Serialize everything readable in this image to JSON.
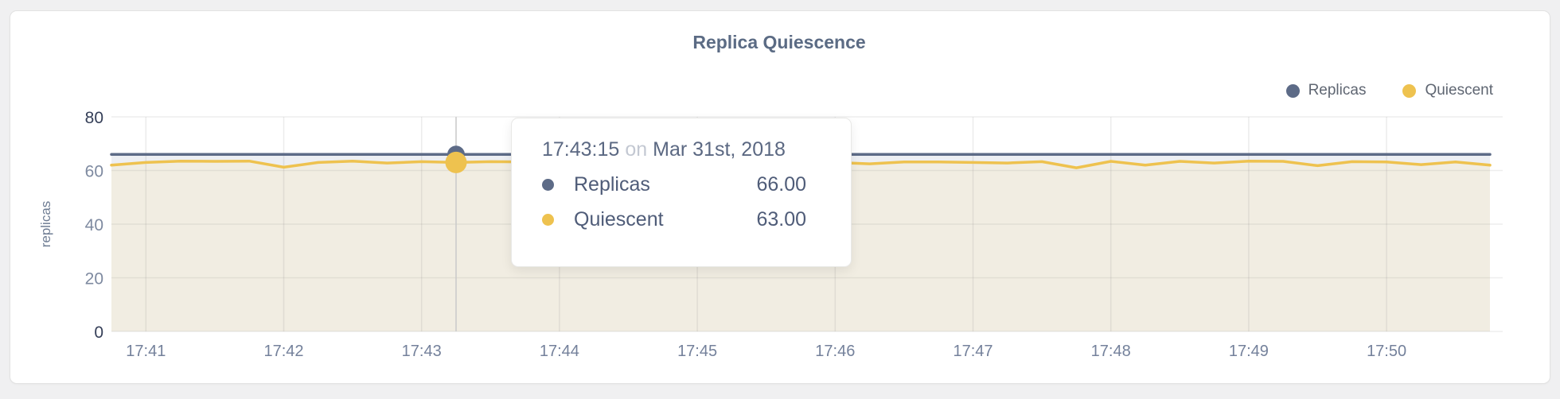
{
  "page": {
    "title": "Replica Quiescence"
  },
  "legend": {
    "items": [
      {
        "label": "Replicas",
        "color": "#5d6b87"
      },
      {
        "label": "Quiescent",
        "color": "#eec24f"
      }
    ]
  },
  "tooltip": {
    "time": "17:43:15",
    "connector": "on",
    "date": "Mar 31st, 2018",
    "rows": [
      {
        "name": "Replicas",
        "value": "66.00",
        "color": "#5d6b87"
      },
      {
        "name": "Quiescent",
        "value": "63.00",
        "color": "#eec24f"
      }
    ]
  },
  "chart_data": {
    "type": "area",
    "title": "Replica Quiescence",
    "xlabel": "",
    "ylabel": "replicas",
    "ylim": [
      0,
      80
    ],
    "grid": true,
    "legend_position": "top-right",
    "y_ticks": [
      {
        "label": "0",
        "value": 0,
        "emphasis": true
      },
      {
        "label": "20",
        "value": 20,
        "emphasis": false
      },
      {
        "label": "40",
        "value": 40,
        "emphasis": false
      },
      {
        "label": "60",
        "value": 60,
        "emphasis": false
      },
      {
        "label": "80",
        "value": 80,
        "emphasis": true
      }
    ],
    "x_ticks": [
      "17:41",
      "17:42",
      "17:43",
      "17:44",
      "17:45",
      "17:46",
      "17:47",
      "17:48",
      "17:49",
      "17:50"
    ],
    "x": [
      "17:40:45",
      "17:41:00",
      "17:41:15",
      "17:41:30",
      "17:41:45",
      "17:42:00",
      "17:42:15",
      "17:42:30",
      "17:42:45",
      "17:43:00",
      "17:43:15",
      "17:43:30",
      "17:43:45",
      "17:44:00",
      "17:44:15",
      "17:44:30",
      "17:44:45",
      "17:45:00",
      "17:45:15",
      "17:45:30",
      "17:45:45",
      "17:46:00",
      "17:46:15",
      "17:46:30",
      "17:46:45",
      "17:47:00",
      "17:47:15",
      "17:47:30",
      "17:47:45",
      "17:48:00",
      "17:48:15",
      "17:48:30",
      "17:48:45",
      "17:49:00",
      "17:49:15",
      "17:49:30",
      "17:49:45",
      "17:50:00",
      "17:50:15",
      "17:50:30",
      "17:50:45"
    ],
    "series": [
      {
        "name": "Replicas",
        "color": "#5d6b87",
        "fill": "#edeff3",
        "values": [
          66,
          66,
          66,
          66,
          66,
          66,
          66,
          66,
          66,
          66,
          66,
          66,
          66,
          66,
          66,
          66,
          66,
          66,
          66,
          66,
          66,
          66,
          66,
          66,
          66,
          66,
          66,
          66,
          66,
          66,
          66,
          66,
          66,
          66,
          66,
          66,
          66,
          66,
          66,
          66,
          66
        ]
      },
      {
        "name": "Quiescent",
        "color": "#eec24f",
        "fill": "#f1ede2",
        "values": [
          62.0,
          63.0,
          63.5,
          63.4,
          63.5,
          61.2,
          63.0,
          63.5,
          62.8,
          63.3,
          63.0,
          63.3,
          63.2,
          63.0,
          63.2,
          63.0,
          63.1,
          63.0,
          63.2,
          63.0,
          63.1,
          63.0,
          62.5,
          63.2,
          63.2,
          63.0,
          62.8,
          63.3,
          61.0,
          63.4,
          62.0,
          63.4,
          62.8,
          63.5,
          63.4,
          61.8,
          63.3,
          63.2,
          62.2,
          63.2,
          62.0
        ]
      }
    ],
    "hover": {
      "time": "17:43:15",
      "date": "Mar 31st, 2018",
      "values": [
        66.0,
        63.0
      ]
    }
  }
}
